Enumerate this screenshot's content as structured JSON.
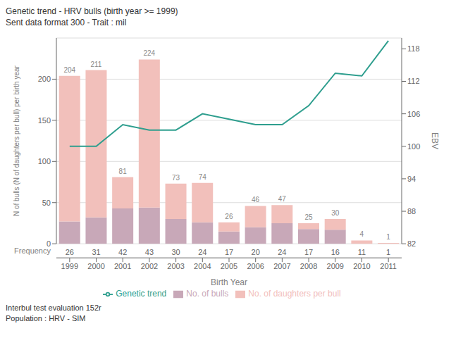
{
  "chart_data": {
    "type": "bar",
    "stacked": true,
    "title": "Genetic trend - HRV bulls (birth year >= 1999)",
    "subtitle": "Sent data format 300 - Trait : mil",
    "x_label": "Birth Year",
    "y_label": "N of bulls (N of daughters per bull) per birth year",
    "y2_label": "EBV",
    "categories": [
      "1999",
      "2000",
      "2001",
      "2002",
      "2003",
      "2004",
      "2005",
      "2006",
      "2007",
      "2008",
      "2009",
      "2010",
      "2011"
    ],
    "series": [
      {
        "name": "No. of bulls",
        "type": "bar",
        "color": "#c8a8b8",
        "values": [
          27,
          32,
          43,
          44,
          30,
          26,
          15,
          20,
          25,
          18,
          17,
          0,
          0
        ]
      },
      {
        "name": "No. of daughters per bull",
        "type": "bar",
        "color": "#f2c0bb",
        "values": [
          177,
          179,
          38,
          180,
          43,
          48,
          11,
          26,
          22,
          7,
          13,
          4,
          1
        ]
      },
      {
        "name": "Genetic trend",
        "type": "line",
        "axis": "y2",
        "color": "#2e9e8e",
        "values": [
          100.0,
          100.0,
          104.0,
          103.0,
          103.0,
          106.0,
          105.0,
          104.0,
          104.0,
          107.5,
          113.5,
          113.0,
          119.5
        ]
      }
    ],
    "stack_totals": [
      204,
      211,
      81,
      224,
      73,
      74,
      26,
      46,
      47,
      25,
      30,
      4,
      1
    ],
    "frequency": {
      "label": "Frequency",
      "values": [
        26,
        31,
        42,
        43,
        30,
        24,
        17,
        20,
        24,
        17,
        16,
        11,
        1
      ]
    },
    "ylim": [
      0,
      250
    ],
    "yticks": [
      0,
      50,
      100,
      150,
      200
    ],
    "y2lim": [
      82,
      120
    ],
    "y2ticks": [
      82,
      88,
      94,
      100,
      106,
      112,
      118
    ],
    "grid": true,
    "legend": "bottom",
    "footnotes": [
      "Interbul test evaluation 152r",
      "Population : HRV - SIM"
    ]
  }
}
